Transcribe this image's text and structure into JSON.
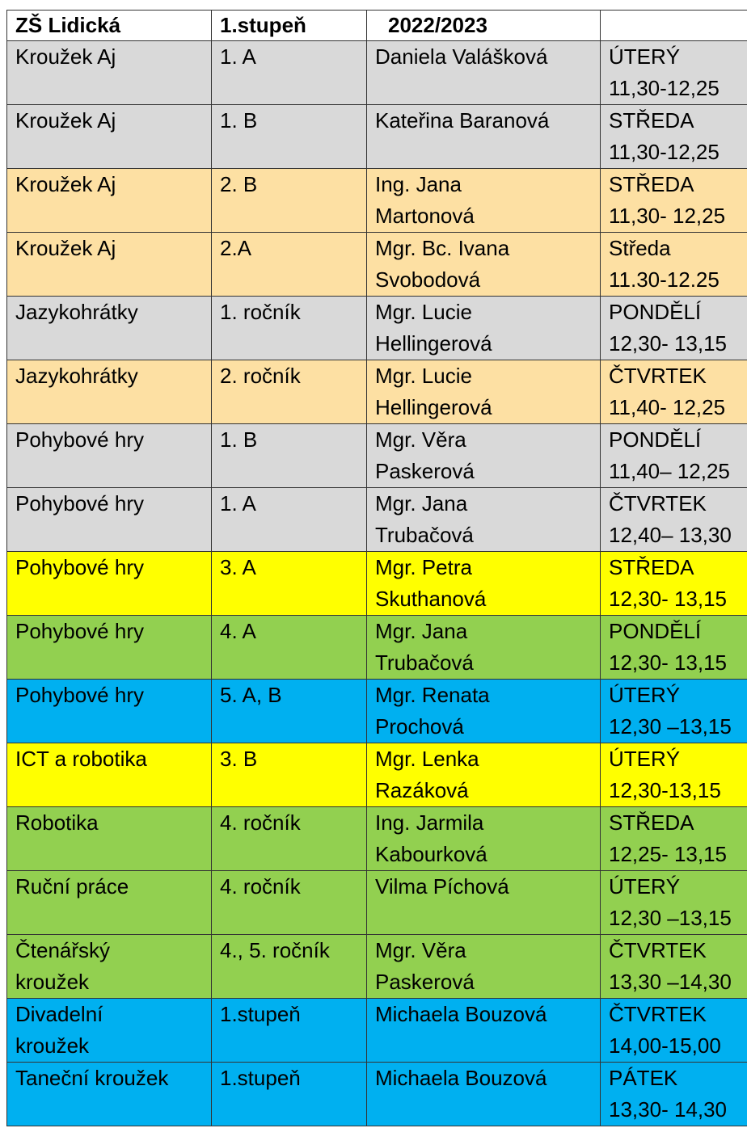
{
  "header": {
    "school": "ZŠ Lidická",
    "level": "1.stupeň",
    "year": "2022/2023",
    "empty": ""
  },
  "colors": {
    "grey": "#d9d9d9",
    "peach": "#fde0a3",
    "yellow": "#ffff00",
    "green": "#92d050",
    "blue": "#00b0f0"
  },
  "rows": [
    {
      "color": "#d9d9d9",
      "activity": [
        "Kroužek Aj"
      ],
      "class": "1. A",
      "teacher": [
        "Daniela Valášková"
      ],
      "time": [
        "ÚTERÝ",
        "11,30-12,25"
      ]
    },
    {
      "color": "#d9d9d9",
      "activity": [
        "Kroužek Aj"
      ],
      "class": "1. B",
      "teacher": [
        "Kateřina Baranová"
      ],
      "time": [
        "STŘEDA",
        "11,30-12,25"
      ]
    },
    {
      "color": "#fde0a3",
      "activity": [
        "Kroužek Aj"
      ],
      "class": "2. B",
      "teacher": [
        "Ing. Jana",
        "Martonová"
      ],
      "time": [
        "STŘEDA",
        "11,30- 12,25"
      ]
    },
    {
      "color": "#fde0a3",
      "activity": [
        "Kroužek Aj"
      ],
      "class": "2.A",
      "teacher": [
        "Mgr. Bc. Ivana",
        "Svobodová"
      ],
      "time": [
        "Středa",
        "11.30-12.25"
      ]
    },
    {
      "color": "#d9d9d9",
      "activity": [
        "Jazykohrátky"
      ],
      "class": "1. ročník",
      "teacher": [
        "Mgr. Lucie",
        "Hellingerová"
      ],
      "time": [
        "PONDĚLÍ",
        "12,30- 13,15"
      ]
    },
    {
      "color": "#fde0a3",
      "activity": [
        "Jazykohrátky"
      ],
      "class": "2. ročník",
      "teacher": [
        "Mgr. Lucie",
        "Hellingerová"
      ],
      "time": [
        "ČTVRTEK",
        "11,40- 12,25"
      ]
    },
    {
      "color": "#d9d9d9",
      "activity": [
        "Pohybové hry"
      ],
      "class": "1. B",
      "teacher": [
        "Mgr. Věra",
        "Paskerová"
      ],
      "time": [
        "PONDĚLÍ",
        "11,40– 12,25"
      ]
    },
    {
      "color": "#d9d9d9",
      "activity": [
        "Pohybové hry"
      ],
      "class": "1. A",
      "teacher": [
        "Mgr. Jana",
        "Trubačová"
      ],
      "time": [
        "ČTVRTEK",
        "12,40– 13,30"
      ]
    },
    {
      "color": "#ffff00",
      "activity": [
        "Pohybové hry"
      ],
      "class": "3. A",
      "teacher": [
        "Mgr. Petra",
        "Skuthanová"
      ],
      "time": [
        "STŘEDA",
        "12,30- 13,15"
      ]
    },
    {
      "color": "#92d050",
      "activity": [
        "Pohybové hry"
      ],
      "class": "4. A",
      "teacher": [
        "Mgr. Jana",
        "Trubačová"
      ],
      "time": [
        "PONDĚLÍ",
        "12,30- 13,15"
      ]
    },
    {
      "color": "#00b0f0",
      "activity": [
        "Pohybové hry"
      ],
      "class": "5. A, B",
      "teacher": [
        "Mgr. Renata",
        "Prochová"
      ],
      "time": [
        "ÚTERÝ",
        "12,30 –13,15"
      ]
    },
    {
      "color": "#ffff00",
      "activity": [
        "ICT a robotika"
      ],
      "class": "3. B",
      "teacher": [
        "Mgr. Lenka",
        "Razáková"
      ],
      "time": [
        "ÚTERÝ",
        "12,30-13,15"
      ]
    },
    {
      "color": "#92d050",
      "activity": [
        "Robotika"
      ],
      "class": "4. ročník",
      "teacher": [
        "Ing. Jarmila",
        "Kabourková"
      ],
      "time": [
        "STŘEDA",
        "12,25- 13,15"
      ]
    },
    {
      "color": "#92d050",
      "activity": [
        "Ruční práce"
      ],
      "class": "4. ročník",
      "teacher": [
        "Vilma Píchová"
      ],
      "time": [
        "ÚTERÝ",
        "12,30 –13,15"
      ]
    },
    {
      "color": "#92d050",
      "activity": [
        "Čtenářský",
        "kroužek"
      ],
      "class": "4., 5. ročník",
      "teacher": [
        "Mgr. Věra",
        "Paskerová"
      ],
      "time": [
        "ČTVRTEK",
        "13,30 –14,30"
      ]
    },
    {
      "color": "#00b0f0",
      "activity": [
        "Divadelní",
        "kroužek"
      ],
      "class": "1.stupeň",
      "teacher": [
        "Michaela Bouzová"
      ],
      "time": [
        "ČTVRTEK",
        "14,00-15,00"
      ]
    },
    {
      "color": "#00b0f0",
      "activity": [
        "Taneční kroužek"
      ],
      "class": "1.stupeň",
      "teacher": [
        "Michaela Bouzová"
      ],
      "time": [
        "PÁTEK",
        "13,30- 14,30"
      ]
    }
  ]
}
